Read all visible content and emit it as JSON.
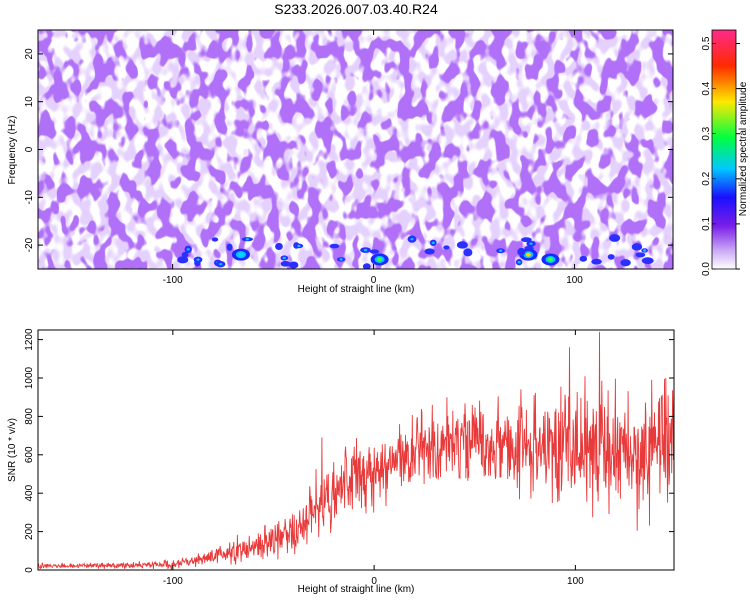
{
  "title": "S233.2026.007.03.40.R24",
  "colors": {
    "frame": "#000000",
    "snr_line": "#e83a3a",
    "background": "#ffffff"
  },
  "chart_data": [
    {
      "type": "heatmap",
      "xlabel": "Height of straight line (km)",
      "ylabel": "Frequency (Hz)",
      "xlim": [
        -167,
        149
      ],
      "ylim": [
        -25,
        25
      ],
      "xticks": [
        -100,
        0,
        100
      ],
      "xtick_labels": [
        "-100",
        "0",
        "100"
      ],
      "yticks": [
        -20,
        -10,
        0,
        10,
        20
      ],
      "ytick_labels": [
        "-20",
        "-10",
        "0",
        "10",
        "20"
      ],
      "colorbar": {
        "label": "Normalized spectral amplitude",
        "range": [
          0.0,
          0.53
        ],
        "ticks": [
          0.0,
          0.1,
          0.2,
          0.3,
          0.4,
          0.5
        ],
        "tick_labels": [
          "0.0",
          "0.1",
          "0.2",
          "0.3",
          "0.4",
          "0.5"
        ],
        "colormap": "rainbow (white-violet-blue-cyan-green-yellow-red-magenta)"
      },
      "description_values": {
        "typical_amplitude": [
          0.0,
          0.1
        ],
        "hotspots": [
          {
            "x": -66,
            "y": -22,
            "value": 0.18
          },
          {
            "x": 3,
            "y": -23,
            "value": 0.33
          },
          {
            "x": 77,
            "y": -22,
            "value": 0.4
          },
          {
            "x": 88,
            "y": -23,
            "value": 0.3
          }
        ]
      }
    },
    {
      "type": "line",
      "xlabel": "Height of straight line (km)",
      "ylabel": "SNR (10 * v/v)",
      "xlim": [
        -167,
        149
      ],
      "ylim": [
        0,
        1250
      ],
      "xticks": [
        -100,
        0,
        100
      ],
      "xtick_labels": [
        "-100",
        "0",
        "100"
      ],
      "yticks": [
        0,
        200,
        400,
        600,
        800,
        1000,
        1200
      ],
      "ytick_labels": [
        "0",
        "200",
        "400",
        "600",
        "800",
        "1000",
        "1200"
      ],
      "series": [
        {
          "x": [
            -167,
            -140,
            -120,
            -100,
            -90,
            -80,
            -70,
            -60,
            -50,
            -40,
            -35,
            -30,
            -25,
            -20,
            -10,
            0,
            10,
            20,
            30,
            40,
            50,
            60,
            70,
            80,
            90,
            100,
            110,
            120,
            130,
            140,
            149
          ],
          "y": [
            20,
            22,
            25,
            30,
            45,
            70,
            95,
            120,
            150,
            190,
            220,
            320,
            380,
            420,
            470,
            510,
            560,
            620,
            650,
            660,
            650,
            640,
            650,
            630,
            640,
            650,
            640,
            630,
            620,
            630,
            610
          ],
          "noise_amplitude": [
            10,
            10,
            12,
            15,
            20,
            30,
            40,
            50,
            60,
            80,
            100,
            130,
            150,
            150,
            130,
            120,
            120,
            130,
            130,
            140,
            140,
            150,
            160,
            180,
            200,
            220,
            240,
            240,
            230,
            230,
            220
          ],
          "peaks": [
            {
              "x": -26,
              "y": 690
            },
            {
              "x": 29,
              "y": 860
            },
            {
              "x": 97,
              "y": 1160
            },
            {
              "x": 112,
              "y": 1240
            },
            {
              "x": 145,
              "y": 1000
            }
          ]
        }
      ]
    }
  ]
}
